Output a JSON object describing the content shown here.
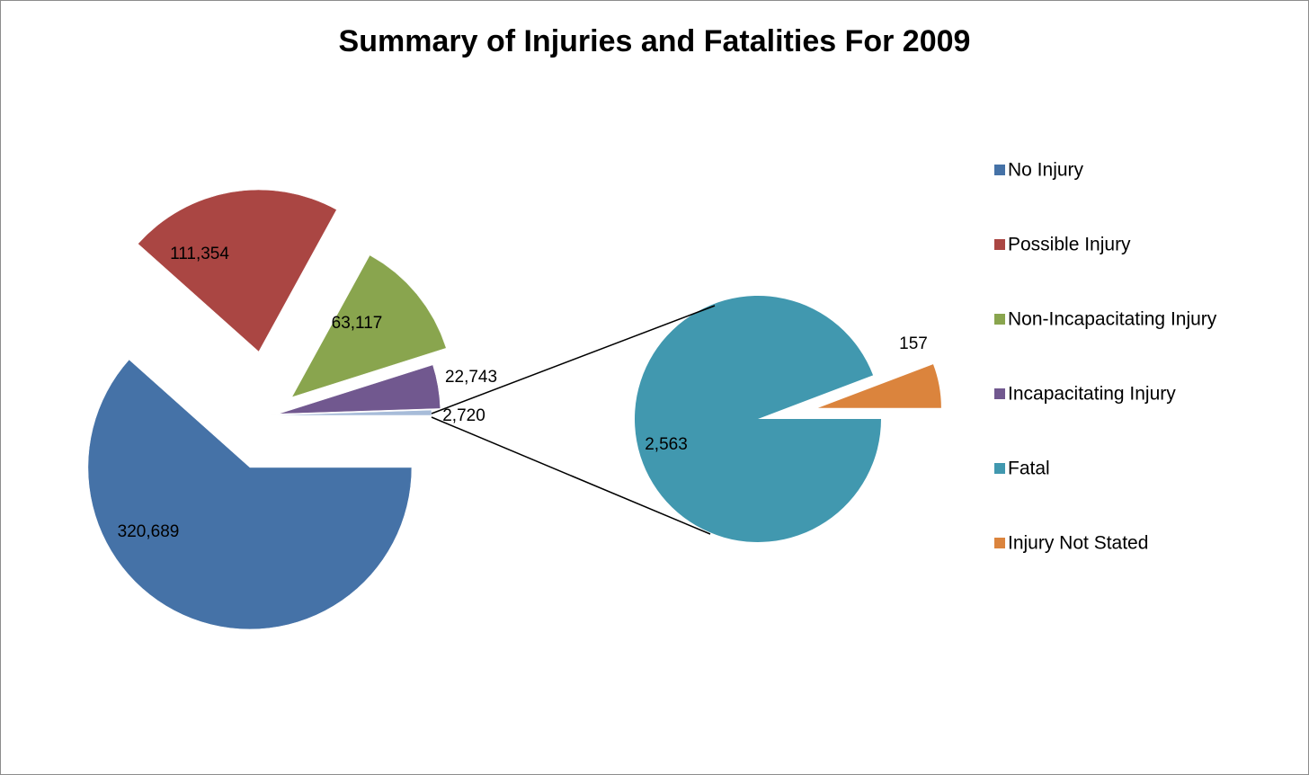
{
  "chart_data": {
    "type": "pie-of-pie",
    "title": "Summary of Injuries and Fatalities For 2009",
    "categories": [
      "No Injury",
      "Possible Injury",
      "Non-Incapacitating Injury",
      "Incapacitating Injury",
      "Fatal",
      "Injury Not Stated"
    ],
    "values": [
      320689,
      111354,
      63117,
      22743,
      2563,
      157
    ],
    "value_labels": [
      "320,689",
      "111,354",
      "63,117",
      "22,743",
      "2,563",
      "157"
    ],
    "colors": [
      "#4572a7",
      "#aa4643",
      "#89a54e",
      "#71588f",
      "#4198af",
      "#db843d"
    ],
    "other_value": 2720,
    "other_label": "2,720",
    "other_color": "#a7bcd9",
    "legend": "right"
  }
}
